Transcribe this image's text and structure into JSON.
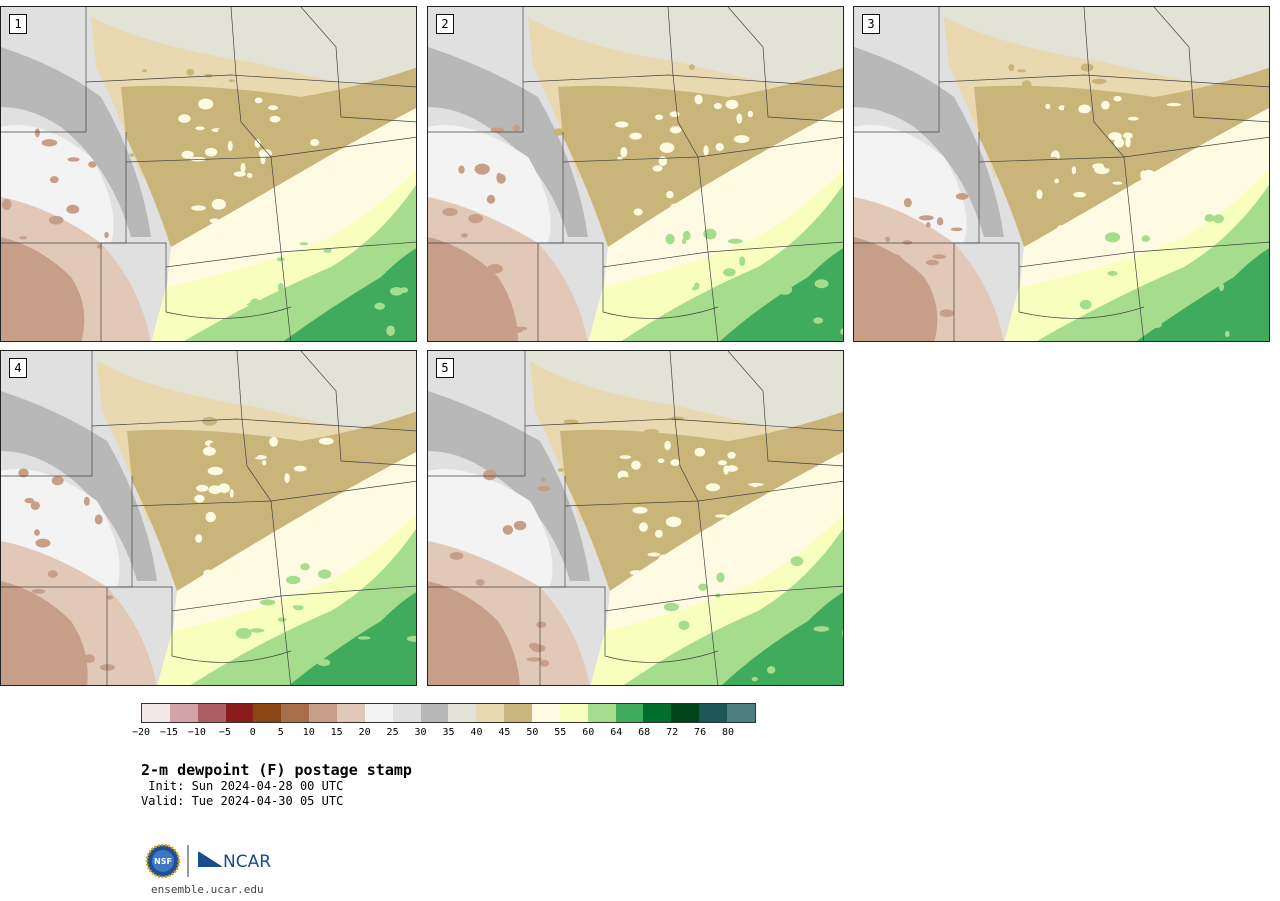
{
  "panels": [
    {
      "label": "1"
    },
    {
      "label": "2"
    },
    {
      "label": "3"
    },
    {
      "label": "4"
    },
    {
      "label": "5"
    }
  ],
  "colorbar": {
    "colors": [
      "#f3e8e8",
      "#d4a3a8",
      "#ae5f63",
      "#8b1a1a",
      "#8b4513",
      "#a86e4c",
      "#c79e87",
      "#e2c8b6",
      "#f3f3f3",
      "#e0e0e0",
      "#b8b8b8",
      "#e2e2d6",
      "#e9d9b1",
      "#c9b47a",
      "#fffbe3",
      "#f8ffbe",
      "#a6dc8d",
      "#41ab5d",
      "#006d2c",
      "#00441b",
      "#1d5654",
      "#4e7f7f"
    ],
    "ticks": [
      "−20",
      "−15",
      "−10",
      "−5",
      "0",
      "5",
      "10",
      "15",
      "20",
      "25",
      "30",
      "35",
      "40",
      "45",
      "50",
      "55",
      "60",
      "64",
      "68",
      "72",
      "76",
      "80"
    ]
  },
  "title": "2-m dewpoint (F) postage stamp",
  "init": " Init: Sun 2024-04-28 00 UTC",
  "valid": "Valid: Tue 2024-04-30 05 UTC",
  "logo": {
    "nsf": "NSF",
    "ncar": "NCAR"
  },
  "footer_url": "ensemble.ucar.edu"
}
